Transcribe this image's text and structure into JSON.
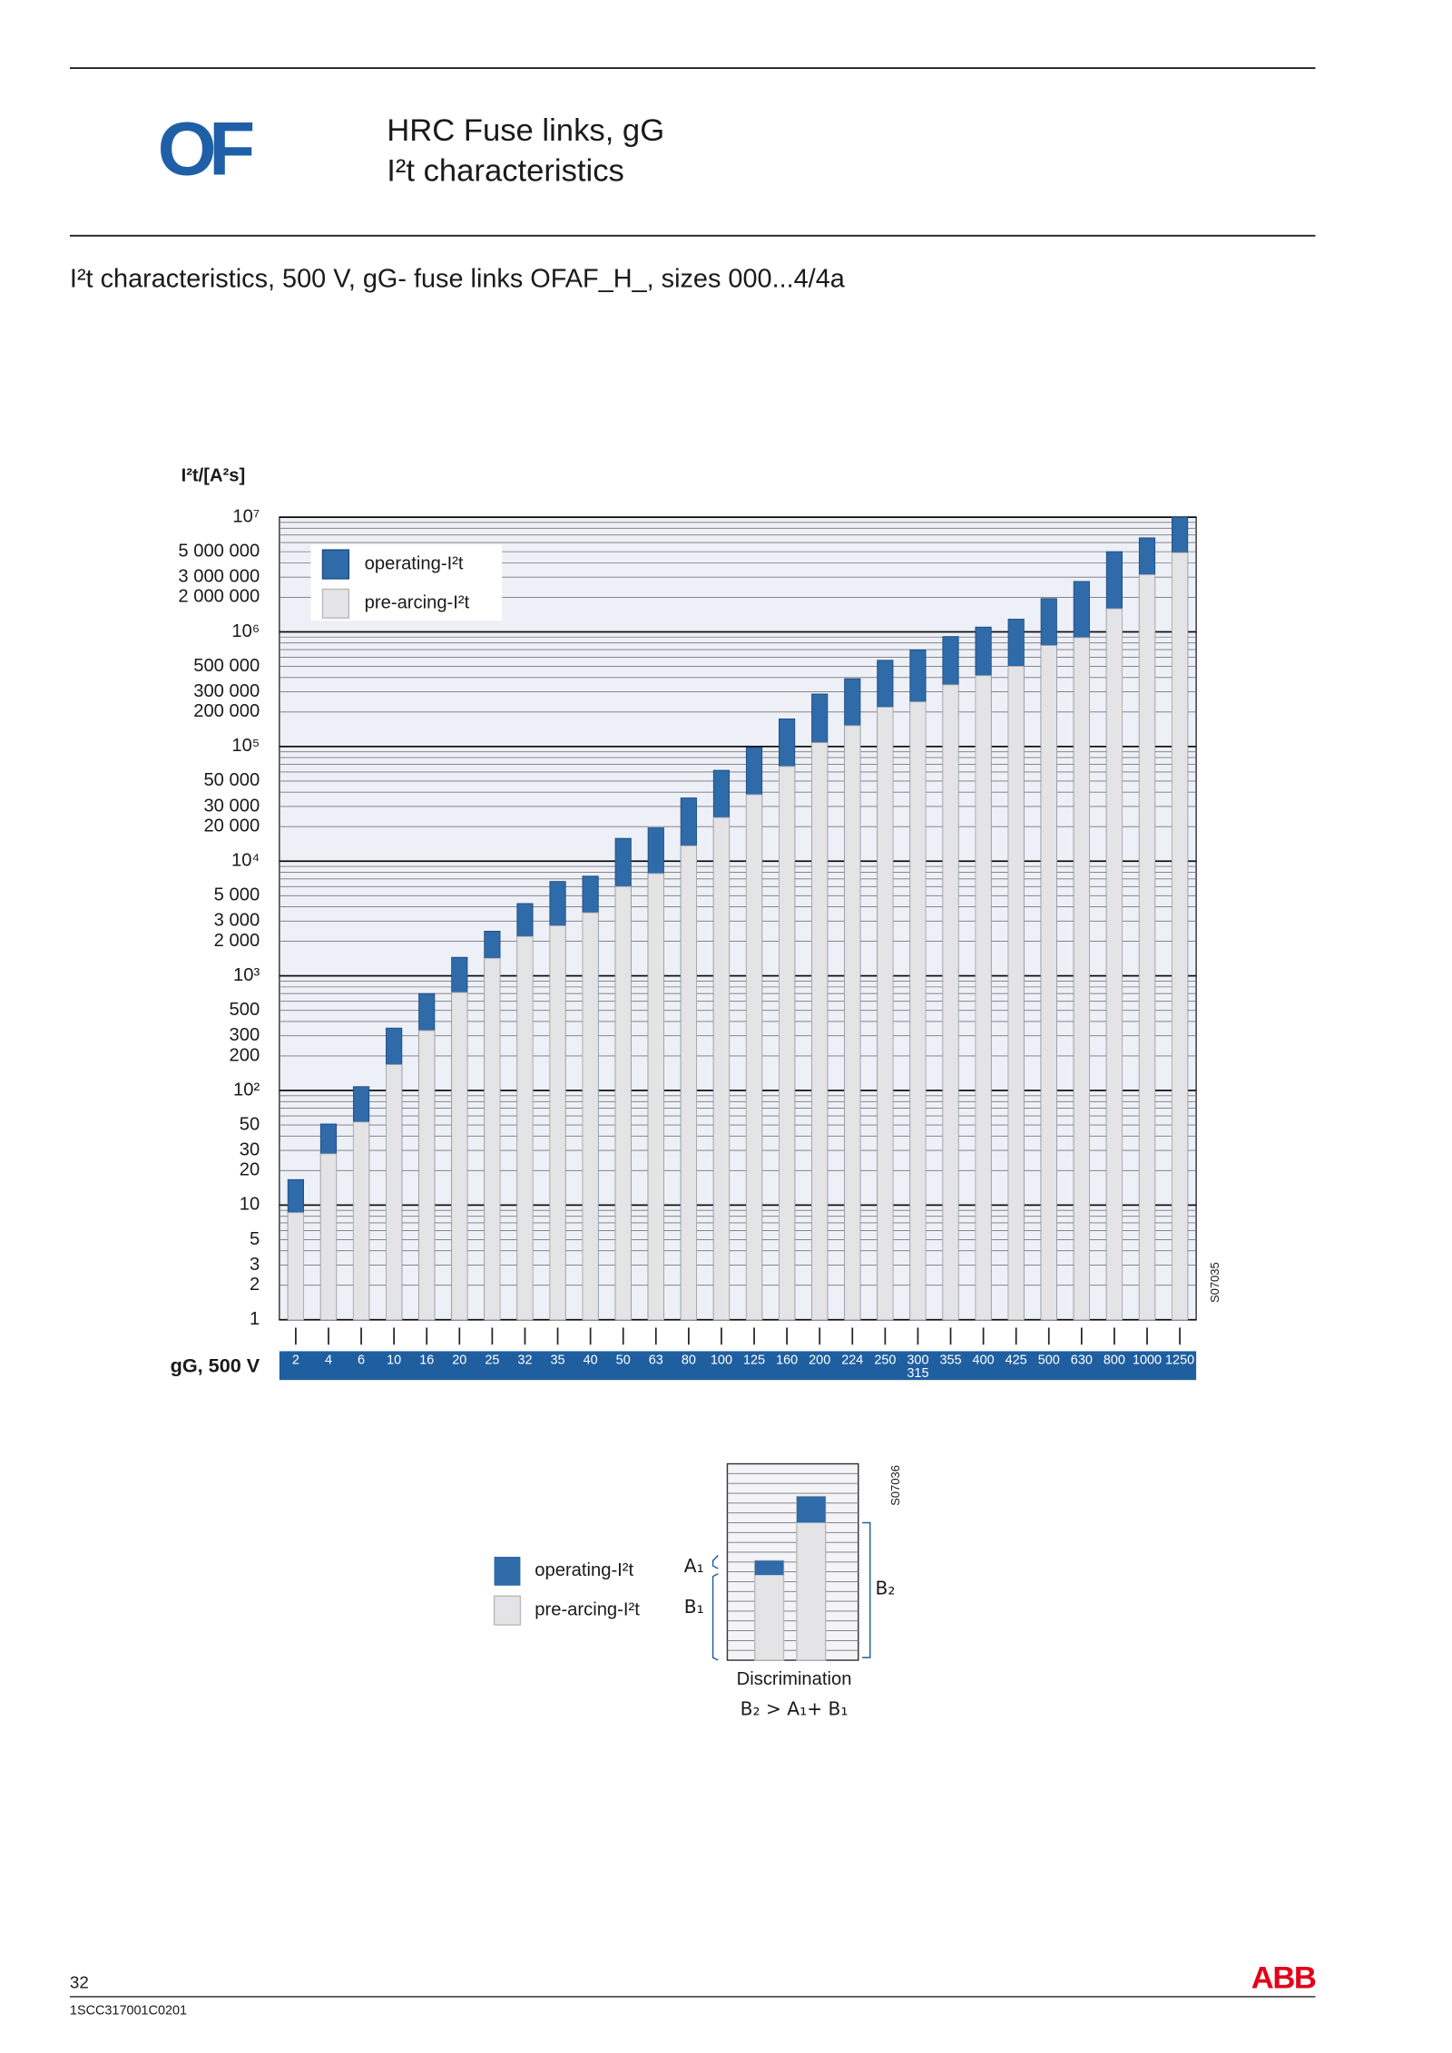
{
  "header": {
    "logo": "OF",
    "title_line1": "HRC Fuse links, gG",
    "title_line2": "I²t characteristics"
  },
  "section_title": "I²t characteristics, 500 V, gG- fuse links OFAF_H_, sizes 000...4/4a",
  "chart_data": {
    "type": "bar",
    "y_label": "I²t/[A²s]",
    "x_label": "gG, 500 V",
    "code": "S07035",
    "log_scale": true,
    "grid": true,
    "legend": "upper left",
    "ylim": [
      1,
      10000000
    ],
    "yticks": [
      {
        "value": 10000000,
        "label": "10⁷"
      },
      {
        "value": 5000000,
        "label": "5 000 000"
      },
      {
        "value": 3000000,
        "label": "3 000 000"
      },
      {
        "value": 2000000,
        "label": "2 000 000"
      },
      {
        "value": 1000000,
        "label": "10⁶"
      },
      {
        "value": 500000,
        "label": "500 000"
      },
      {
        "value": 300000,
        "label": "300 000"
      },
      {
        "value": 200000,
        "label": "200 000"
      },
      {
        "value": 100000,
        "label": "10⁵"
      },
      {
        "value": 50000,
        "label": "50 000"
      },
      {
        "value": 30000,
        "label": "30 000"
      },
      {
        "value": 20000,
        "label": "20 000"
      },
      {
        "value": 10000,
        "label": "10⁴"
      },
      {
        "value": 5000,
        "label": "5 000"
      },
      {
        "value": 3000,
        "label": "3 000"
      },
      {
        "value": 2000,
        "label": "2 000"
      },
      {
        "value": 1000,
        "label": "10³"
      },
      500,
      300,
      200,
      {
        "value": 100,
        "label": "10²"
      },
      50,
      30,
      20,
      10,
      5,
      3,
      2,
      1
    ],
    "minor_yticks": [
      4,
      6,
      7,
      8,
      9,
      40,
      60,
      70,
      80,
      90,
      400,
      600,
      700,
      800,
      900,
      4000,
      6000,
      7000,
      8000,
      9000,
      40000,
      60000,
      70000,
      80000,
      90000,
      400000,
      600000,
      700000,
      800000,
      900000,
      4000000,
      6000000,
      7000000,
      8000000,
      9000000
    ],
    "categories": [
      "2",
      "4",
      "6",
      "10",
      "16",
      "20",
      "25",
      "32",
      "35",
      "40",
      "50",
      "63",
      "80",
      "100",
      "125",
      "160",
      "200",
      "224",
      "250",
      [
        "300",
        "315"
      ],
      "355",
      "400",
      "425",
      "500",
      "630",
      "800",
      "1000",
      "1250"
    ],
    "series": [
      {
        "name": "operating-I²t",
        "color": "#2f6aa9",
        "values": [
          16.7,
          51,
          108,
          350,
          700,
          1450,
          2450,
          4270,
          6650,
          7400,
          15800,
          19500,
          35600,
          62000,
          98000,
          174000,
          287000,
          390000,
          565000,
          695000,
          910000,
          1100000,
          1290000,
          1950000,
          2750000,
          5000000,
          6600000,
          10000000
        ]
      },
      {
        "name": "pre-arcing-I²t",
        "color": "#e4e4e6",
        "values": [
          8.6,
          28,
          53,
          168,
          333,
          715,
          1420,
          2200,
          2730,
          3550,
          6000,
          7800,
          13600,
          24000,
          38000,
          67000,
          108000,
          152000,
          220000,
          245000,
          345000,
          415000,
          500000,
          760000,
          890000,
          1590000,
          3150000,
          4900000
        ]
      }
    ]
  },
  "diagram": {
    "legend_operating": "operating-I²t",
    "legend_pre": "pre-arcing-I²t",
    "a1": "A₁",
    "b1": "B₁",
    "b2": "B₂",
    "caption": "Discrimination",
    "formula": "B₂ > A₁+ B₁",
    "code": "S07036"
  },
  "footer": {
    "page": "32",
    "doc_id": "1SCC317001C0201",
    "brand": "ABB"
  }
}
